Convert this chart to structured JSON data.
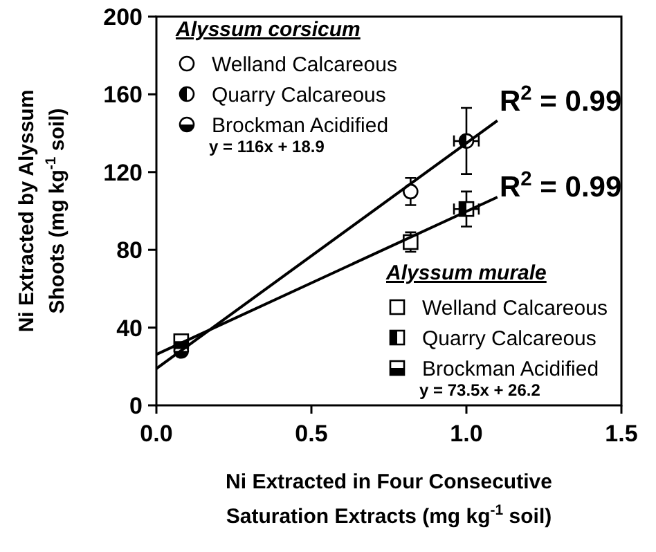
{
  "chart_data": {
    "type": "scatter",
    "xlabel": "Ni Extracted in Four Consecutive Saturation Extracts (mg kg$^{-1}$ soil)",
    "ylabel": "Ni Extracted by Alyssum Shoots (mg kg$^{-1}$ soil)",
    "xlim": [
      0,
      1.5
    ],
    "xticks": [
      {
        "value": 0,
        "label": "0.0"
      },
      {
        "value": 0.5,
        "label": "0.5"
      },
      {
        "value": 1,
        "label": "1.0"
      },
      {
        "value": 1.5,
        "label": "1.5"
      }
    ],
    "ylim": [
      0,
      200
    ],
    "yticks": [
      0,
      40,
      80,
      120,
      160,
      200
    ],
    "grid": false,
    "legend": "bottom right",
    "series": [
      {
        "name": "Welland Calcareous",
        "color": "#000000",
        "marker": "circle",
        "x": [
          0.82
        ],
        "values": [
          110
        ],
        "errors": [
          7
        ]
      },
      {
        "name": "Quarry Calcareous",
        "color": "#000000",
        "marker": "circle",
        "x": [
          1.0
        ],
        "values": [
          136
        ],
        "errors": [
          17
        ],
        "xerrors": [
          0.04
        ]
      },
      {
        "name": "Brockman Acidified",
        "color": "#000000",
        "marker": "circle",
        "x": [
          0.08
        ],
        "values": [
          28
        ],
        "errors": [
          null
        ]
      },
      {
        "name": "Welland Calcareous",
        "color": "#000000",
        "marker": "square",
        "x": [
          0.82
        ],
        "values": [
          84
        ],
        "errors": [
          5
        ]
      },
      {
        "name": "Quarry Calcareous",
        "color": "#000000",
        "marker": "square",
        "x": [
          1.0
        ],
        "values": [
          101
        ],
        "errors": [
          9
        ],
        "xerrors": [
          0.04
        ]
      },
      {
        "name": "Brockman Acidified",
        "color": "#000000",
        "marker": "square",
        "x": [
          0.08
        ],
        "values": [
          33
        ],
        "errors": [
          null
        ]
      },
      {
        "type": "line",
        "color": "#000000",
        "x": [
          0,
          1.1
        ],
        "values": [
          18.9,
          146.5
        ]
      },
      {
        "type": "line",
        "color": "#000000",
        "x": [
          0,
          1.1
        ],
        "values": [
          26.2,
          107.1
        ]
      }
    ],
    "annotations": [
      "Alyssum corsicum",
      "y = 116x + 18.9",
      "Alyssum murale",
      "y = 73.5x + 26.2",
      "R$^{2}$ = 0.99",
      "R$^{2}$ = 0.99"
    ]
  }
}
